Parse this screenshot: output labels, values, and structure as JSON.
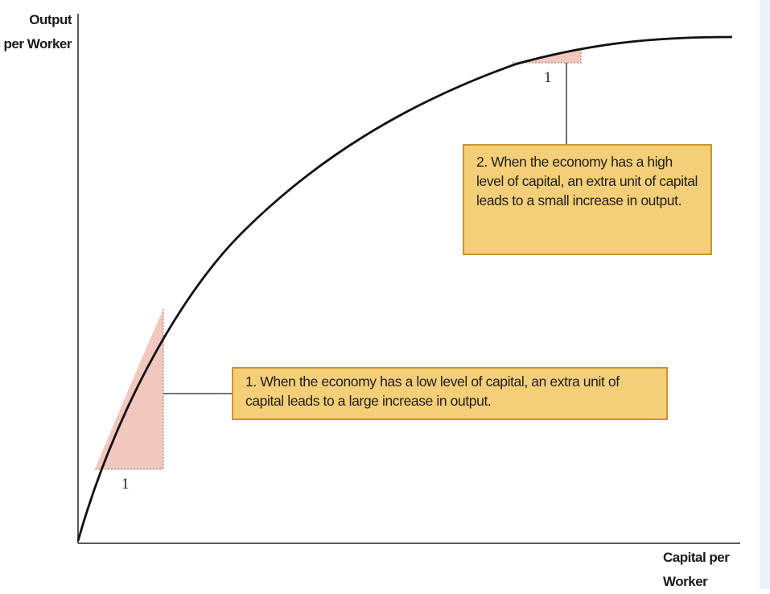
{
  "axes": {
    "y_label": "Output\nper Worker",
    "x_label": "Capital per\nWorker"
  },
  "callouts": {
    "low_capital": "1. When the economy has a low level of capital, an extra unit of capital leads to a large increase in output.",
    "high_capital": "2. When the economy has a high level of capital, an extra unit of capital leads to a small increase in output."
  },
  "step_labels": {
    "low": "1",
    "high": "1"
  },
  "colors": {
    "curve": "#111111",
    "shaded_triangle": "#f2c7bd",
    "callout_fill": "#f5cf78",
    "callout_border": "#c9962e",
    "side_panel": "#e9f3fb"
  }
}
